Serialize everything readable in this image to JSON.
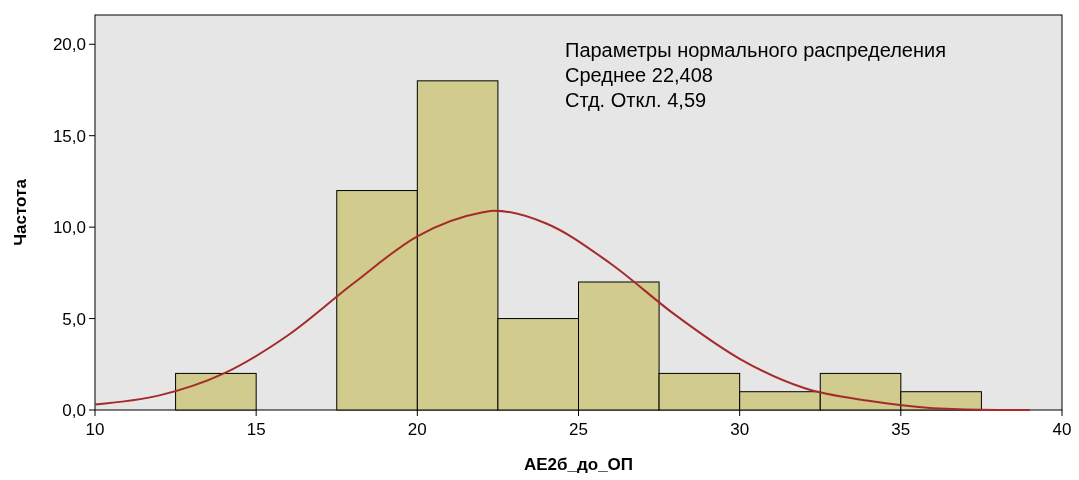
{
  "chart_data": {
    "type": "histogram",
    "xlabel": "АЕ2б_до_ОП",
    "ylabel": "Частота",
    "annotations": [
      "Параметры нормального распределения",
      "Среднее 22,408",
      "Стд. Откл. 4,59"
    ],
    "bins": [
      12.5,
      15,
      17.5,
      20,
      22.5,
      25,
      27.5,
      30,
      32.5,
      35,
      37.5
    ],
    "values": [
      2,
      0,
      12,
      18,
      5,
      7,
      2,
      1,
      2,
      1
    ],
    "color": "#d1cc8e",
    "series": [
      {
        "type": "line",
        "color": "#a52a2a",
        "x": [
          10,
          12,
          14,
          16,
          18,
          20,
          22,
          22.4,
          24,
          26,
          28,
          30,
          32,
          34,
          36,
          38,
          39
        ],
        "values": [
          0.3,
          0.8,
          2.0,
          4.1,
          6.9,
          9.5,
          10.8,
          10.9,
          10.2,
          8.0,
          5.2,
          2.8,
          1.2,
          0.5,
          0.1,
          0.0,
          0.0
        ]
      }
    ],
    "xlim": [
      10,
      40
    ],
    "xticks": [
      10,
      15,
      20,
      25,
      30,
      35,
      40
    ],
    "ylim": [
      0,
      21.6
    ],
    "yticks": [
      {
        "value": 0,
        "label": "0,0"
      },
      {
        "value": 5,
        "label": "5,0"
      },
      {
        "value": 10,
        "label": "10,0"
      },
      {
        "value": 15,
        "label": "15,0"
      },
      {
        "value": 20,
        "label": "20,0"
      }
    ],
    "grid": false
  }
}
